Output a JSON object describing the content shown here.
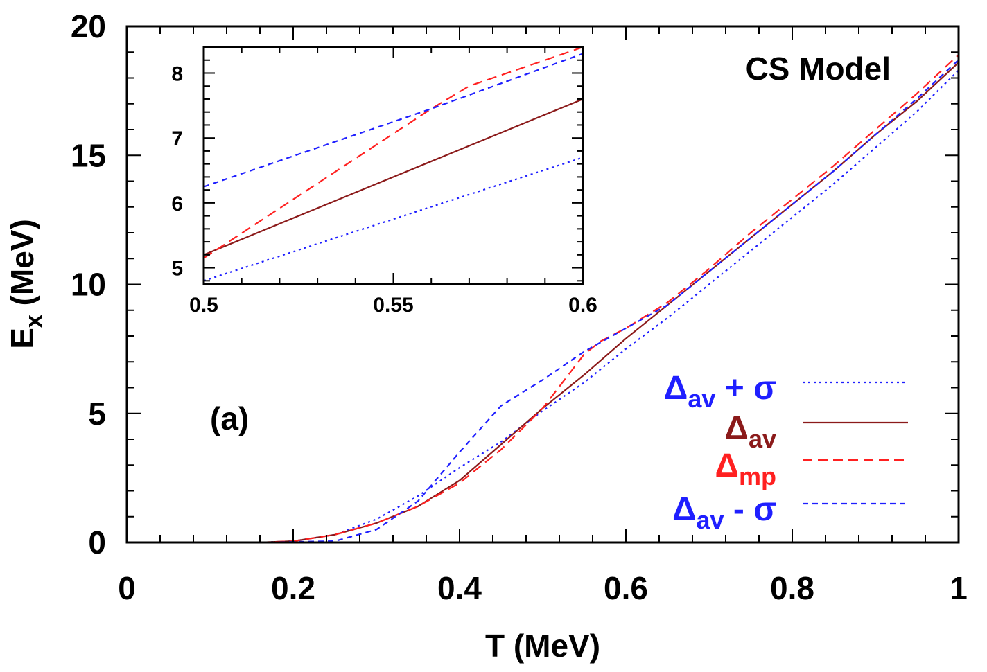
{
  "chart_data": [
    {
      "type": "line",
      "title": "",
      "xlabel": "T (MeV)",
      "ylabel": {
        "main": "E",
        "sub": "x",
        "unit": " (MeV)"
      },
      "xlim": [
        0,
        1
      ],
      "ylim": [
        0,
        20
      ],
      "xticks": [
        "0",
        "0.2",
        "0.4",
        "0.6",
        "0.8",
        "1"
      ],
      "xtick_values": [
        0,
        0.2,
        0.4,
        0.6,
        0.8,
        1
      ],
      "yticks": [
        "0",
        "5",
        "10",
        "15",
        "20"
      ],
      "ytick_values": [
        0,
        5,
        10,
        15,
        20
      ],
      "grid": false,
      "legend_position": "right",
      "annotations": {
        "model": "CS Model",
        "panel": "(a)"
      },
      "series": [
        {
          "key": "av_plus_sigma",
          "label_main": "Δ",
          "label_sub": "av",
          "label_suffix": " + σ",
          "color": "#1f1fff",
          "style": "dotted",
          "x": [
            0.16,
            0.2,
            0.25,
            0.3,
            0.35,
            0.4,
            0.45,
            0.5,
            0.55,
            0.6,
            0.65,
            0.7,
            0.75,
            0.8,
            0.85,
            0.9,
            0.95,
            1.0
          ],
          "y": [
            0.0,
            0.05,
            0.3,
            0.9,
            1.8,
            2.9,
            3.9,
            5.1,
            6.2,
            7.5,
            8.7,
            10.0,
            11.3,
            12.6,
            13.9,
            15.3,
            16.7,
            18.3
          ]
        },
        {
          "key": "av",
          "label_main": "Δ",
          "label_sub": "av",
          "label_suffix": "",
          "color": "#8b1a1a",
          "style": "solid",
          "x": [
            0.16,
            0.2,
            0.25,
            0.3,
            0.35,
            0.4,
            0.45,
            0.5,
            0.55,
            0.6,
            0.65,
            0.7,
            0.75,
            0.8,
            0.85,
            0.9,
            0.95,
            1.0
          ],
          "y": [
            0.0,
            0.05,
            0.3,
            0.75,
            1.4,
            2.4,
            3.8,
            5.2,
            6.5,
            7.9,
            9.2,
            10.5,
            11.8,
            13.1,
            14.4,
            15.8,
            17.1,
            18.6
          ]
        },
        {
          "key": "mp",
          "label_main": "Δ",
          "label_sub": "mp",
          "label_suffix": "",
          "color": "#ff2020",
          "style": "dashed",
          "x": [
            0.16,
            0.2,
            0.25,
            0.3,
            0.35,
            0.4,
            0.45,
            0.5,
            0.55,
            0.57,
            0.6,
            0.65,
            0.7,
            0.75,
            0.8,
            0.85,
            0.9,
            0.95,
            1.0
          ],
          "y": [
            0.0,
            0.05,
            0.3,
            0.75,
            1.4,
            2.3,
            3.6,
            5.2,
            7.3,
            7.8,
            8.3,
            9.3,
            10.6,
            12.0,
            13.3,
            14.6,
            16.0,
            17.4,
            18.9
          ]
        },
        {
          "key": "av_minus_sigma",
          "label_main": "Δ",
          "label_sub": "av",
          "label_suffix": " - σ",
          "color": "#1f1fff",
          "style": "short-dashed",
          "x": [
            0.16,
            0.25,
            0.3,
            0.35,
            0.4,
            0.45,
            0.5,
            0.55,
            0.6,
            0.65,
            0.7,
            0.75,
            0.8,
            0.85,
            0.9,
            0.95,
            1.0
          ],
          "y": [
            0.0,
            0.05,
            0.5,
            1.6,
            3.5,
            5.3,
            6.3,
            7.4,
            8.3,
            9.2,
            10.5,
            11.8,
            13.1,
            14.4,
            15.8,
            17.2,
            18.7
          ]
        }
      ]
    },
    {
      "type": "line",
      "title": "",
      "xlim": [
        0.5,
        0.6
      ],
      "ylim": [
        4.75,
        8.4
      ],
      "xticks": [
        "0.5",
        "0.55",
        "0.6"
      ],
      "xtick_values": [
        0.5,
        0.55,
        0.6
      ],
      "yticks": [
        "5",
        "6",
        "7",
        "8"
      ],
      "ytick_values": [
        5,
        6,
        7,
        8
      ],
      "series": [
        {
          "key": "av_plus_sigma",
          "color": "#1f1fff",
          "style": "dotted",
          "x": [
            0.5,
            0.6
          ],
          "y": [
            4.8,
            6.7
          ]
        },
        {
          "key": "av",
          "color": "#8b1a1a",
          "style": "solid",
          "x": [
            0.5,
            0.6
          ],
          "y": [
            5.2,
            7.6
          ]
        },
        {
          "key": "mp",
          "color": "#ff2020",
          "style": "dashed",
          "x": [
            0.5,
            0.56,
            0.57,
            0.6
          ],
          "y": [
            5.15,
            7.45,
            7.8,
            8.4
          ]
        },
        {
          "key": "av_minus_sigma",
          "color": "#1f1fff",
          "style": "short-dashed",
          "x": [
            0.5,
            0.56,
            0.6
          ],
          "y": [
            6.25,
            7.45,
            8.3
          ]
        }
      ]
    }
  ]
}
